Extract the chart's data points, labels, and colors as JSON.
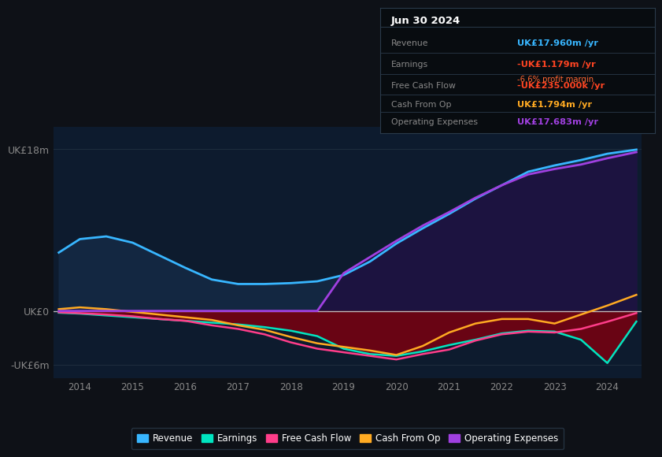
{
  "bg_color": "#0e1117",
  "plot_bg_color": "#0d1b2e",
  "years": [
    2013.6,
    2014.0,
    2014.5,
    2015.0,
    2015.5,
    2016.0,
    2016.5,
    2017.0,
    2017.5,
    2018.0,
    2018.5,
    2019.0,
    2019.5,
    2020.0,
    2020.5,
    2021.0,
    2021.5,
    2022.0,
    2022.5,
    2023.0,
    2023.5,
    2024.0,
    2024.55
  ],
  "revenue": [
    6.5,
    8.0,
    8.3,
    7.6,
    6.2,
    4.8,
    3.5,
    3.0,
    3.0,
    3.1,
    3.3,
    4.0,
    5.5,
    7.5,
    9.2,
    10.8,
    12.5,
    14.0,
    15.5,
    16.2,
    16.8,
    17.5,
    17.96
  ],
  "earnings": [
    -0.2,
    -0.3,
    -0.5,
    -0.7,
    -0.9,
    -1.1,
    -1.3,
    -1.5,
    -1.8,
    -2.2,
    -2.8,
    -4.2,
    -4.8,
    -5.0,
    -4.5,
    -3.8,
    -3.2,
    -2.5,
    -2.2,
    -2.3,
    -3.2,
    -5.8,
    -1.179
  ],
  "free_cash_flow": [
    -0.15,
    -0.25,
    -0.4,
    -0.6,
    -0.9,
    -1.1,
    -1.6,
    -2.0,
    -2.6,
    -3.5,
    -4.2,
    -4.6,
    -5.0,
    -5.4,
    -4.8,
    -4.3,
    -3.3,
    -2.6,
    -2.3,
    -2.4,
    -2.0,
    -1.2,
    -0.235
  ],
  "cash_from_op": [
    0.2,
    0.4,
    0.2,
    -0.1,
    -0.4,
    -0.7,
    -1.0,
    -1.6,
    -2.1,
    -2.9,
    -3.6,
    -4.0,
    -4.4,
    -4.9,
    -3.9,
    -2.4,
    -1.4,
    -0.9,
    -0.9,
    -1.4,
    -0.4,
    0.6,
    1.794
  ],
  "op_expenses": [
    0.0,
    0.0,
    0.0,
    0.0,
    0.0,
    0.0,
    0.0,
    0.0,
    0.0,
    0.0,
    0.0,
    4.2,
    6.0,
    7.8,
    9.5,
    11.0,
    12.6,
    14.0,
    15.2,
    15.8,
    16.3,
    17.0,
    17.683
  ],
  "revenue_color": "#38b6ff",
  "earnings_color": "#00e5c0",
  "free_cash_flow_color": "#ff3d8a",
  "cash_from_op_color": "#ffaa22",
  "op_expenses_color": "#a040e0",
  "revenue_fill_color": "#152a45",
  "op_expenses_fill_color": "#1e1040",
  "earnings_fill_color": "#7a0010",
  "ylim_min": -7.5,
  "ylim_max": 20.5,
  "ytick_vals": [
    -6,
    0,
    18
  ],
  "ytick_labels": [
    "-UK£6m",
    "UK£0",
    "UK£18m"
  ],
  "xtick_years": [
    2014,
    2015,
    2016,
    2017,
    2018,
    2019,
    2020,
    2021,
    2022,
    2023,
    2024
  ],
  "grid_color": "#1e2d3d",
  "zero_line_color": "#c0c0c0",
  "info_box": {
    "date": "Jun 30 2024",
    "rows": [
      {
        "label": "Revenue",
        "value": "UK£17.960m /yr",
        "value_color": "#38b6ff",
        "extra": null
      },
      {
        "label": "Earnings",
        "value": "-UK£1.179m /yr",
        "value_color": "#ff4422",
        "extra": "-6.6% profit margin"
      },
      {
        "label": "Free Cash Flow",
        "value": "-UK£235.000k /yr",
        "value_color": "#ff4422",
        "extra": null
      },
      {
        "label": "Cash From Op",
        "value": "UK£1.794m /yr",
        "value_color": "#ffaa22",
        "extra": null
      },
      {
        "label": "Operating Expenses",
        "value": "UK£17.683m /yr",
        "value_color": "#a040e0",
        "extra": null
      }
    ]
  },
  "legend_items": [
    "Revenue",
    "Earnings",
    "Free Cash Flow",
    "Cash From Op",
    "Operating Expenses"
  ],
  "legend_colors": [
    "#38b6ff",
    "#00e5c0",
    "#ff3d8a",
    "#ffaa22",
    "#a040e0"
  ]
}
